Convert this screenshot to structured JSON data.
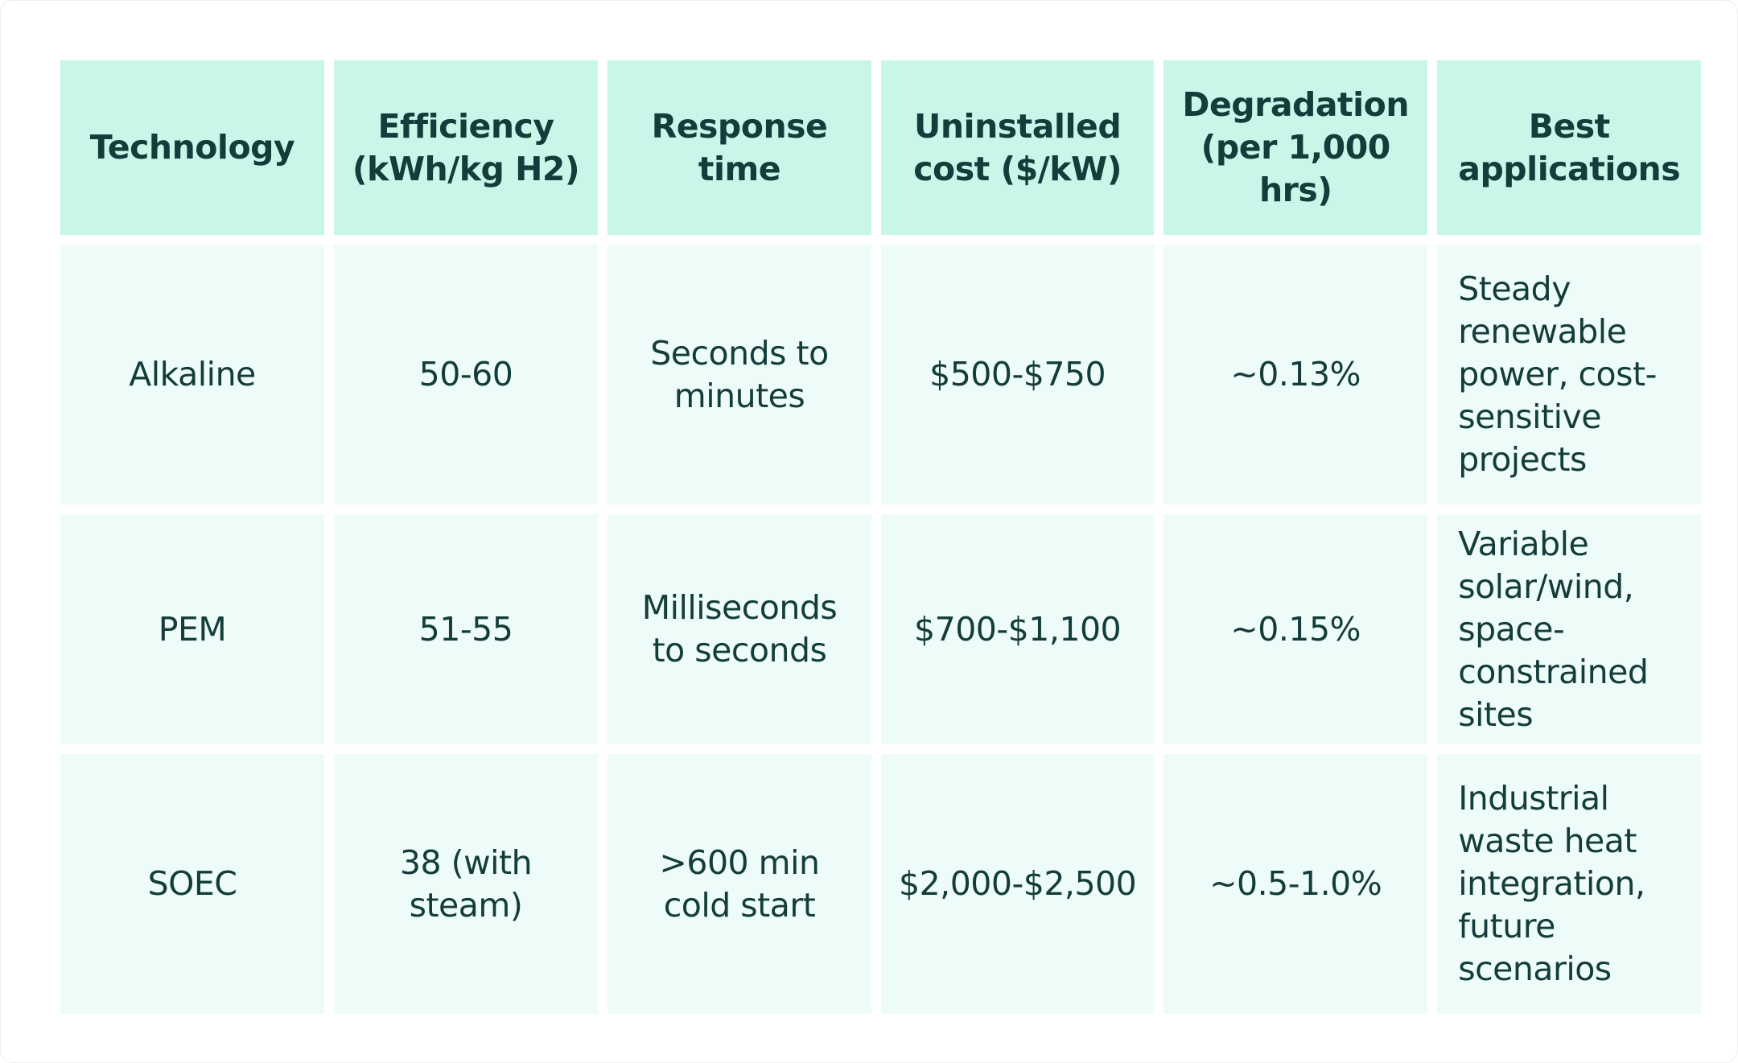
{
  "table": {
    "headers": [
      "Technology",
      "Efficiency (kWh/kg H2)",
      "Response time",
      "Uninstalled cost ($/kW)",
      "Degradation (per 1,000 hrs)",
      "Best applications"
    ],
    "rows": [
      {
        "technology": "Alkaline",
        "efficiency": "50-60",
        "response_time": "Seconds to minutes",
        "cost": "$500-$750",
        "degradation": "~0.13%",
        "applications": "Steady renewable power, cost-sensitive projects"
      },
      {
        "technology": "PEM",
        "efficiency": "51-55",
        "response_time": "Milliseconds to seconds",
        "cost": "$700-$1,100",
        "degradation": "~0.15%",
        "applications": "Variable solar/wind, space-constrained sites"
      },
      {
        "technology": "SOEC",
        "efficiency": "38 (with steam)",
        "response_time": ">600 min cold start",
        "cost": "$2,000-$2,500",
        "degradation": "~0.5-1.0%",
        "applications": "Industrial waste heat integration, future scenarios"
      }
    ]
  }
}
